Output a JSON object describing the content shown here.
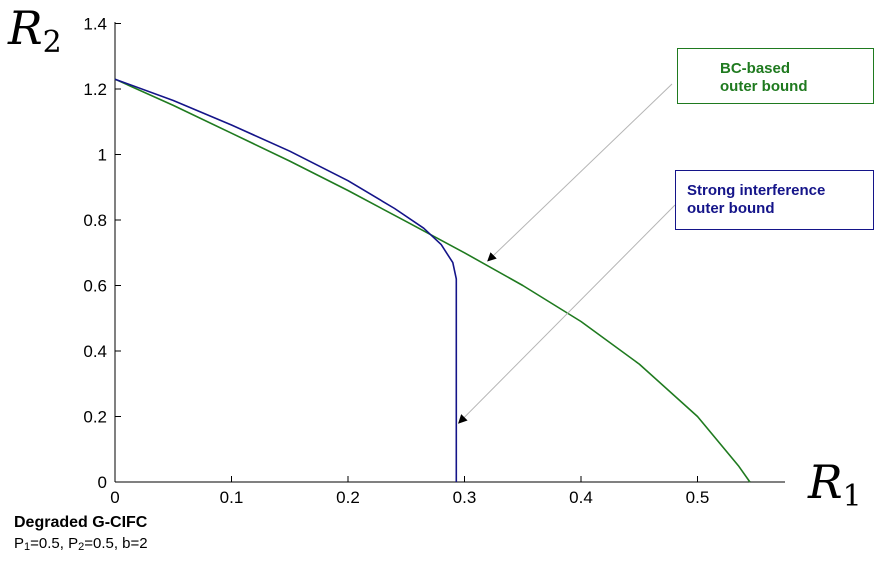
{
  "chart_data": {
    "type": "line",
    "x_axis_label_main": "R",
    "x_axis_label_sub": "1",
    "y_axis_label_main": "R",
    "y_axis_label_sub": "2",
    "xlim": [
      0,
      0.55
    ],
    "ylim": [
      0,
      1.4
    ],
    "x_ticks": [
      "0",
      "0.1",
      "0.2",
      "0.3",
      "0.4",
      "0.5"
    ],
    "y_ticks": [
      "0",
      "0.2",
      "0.4",
      "0.6",
      "0.8",
      "1",
      "1.2",
      "1.4"
    ],
    "grid": false,
    "series": [
      {
        "name": "BC-based outer bound",
        "color": "#1f7a1f",
        "points": [
          [
            0,
            1.23
          ],
          [
            0.05,
            1.15
          ],
          [
            0.1,
            1.065
          ],
          [
            0.15,
            0.98
          ],
          [
            0.2,
            0.89
          ],
          [
            0.25,
            0.795
          ],
          [
            0.3,
            0.7
          ],
          [
            0.35,
            0.6
          ],
          [
            0.4,
            0.49
          ],
          [
            0.45,
            0.36
          ],
          [
            0.5,
            0.2
          ],
          [
            0.535,
            0.05
          ],
          [
            0.545,
            0
          ]
        ]
      },
      {
        "name": "Strong interference outer bound",
        "color": "#141489",
        "points": [
          [
            0,
            1.23
          ],
          [
            0.05,
            1.165
          ],
          [
            0.1,
            1.09
          ],
          [
            0.15,
            1.01
          ],
          [
            0.2,
            0.92
          ],
          [
            0.24,
            0.835
          ],
          [
            0.265,
            0.775
          ],
          [
            0.28,
            0.725
          ],
          [
            0.29,
            0.67
          ],
          [
            0.293,
            0.62
          ],
          [
            0.293,
            0.4
          ],
          [
            0.293,
            0
          ]
        ]
      }
    ],
    "annotations": [
      {
        "label_lines": [
          "BC-based",
          "outer bound"
        ],
        "color": "#1f7a1f",
        "arrow_target": [
          0.32,
          0.675
        ]
      },
      {
        "label_lines": [
          "Strong interference",
          "outer bound"
        ],
        "color": "#141489",
        "arrow_target": [
          0.295,
          0.18
        ]
      }
    ]
  },
  "notes": {
    "title": "Degraded G-CIFC",
    "params_p1_prefix": "P",
    "params_p1_sub": "1",
    "params_p1_value": "=0.5, ",
    "params_p2_prefix": "P",
    "params_p2_sub": "2",
    "params_p2_value": "=0.5, b=2"
  }
}
